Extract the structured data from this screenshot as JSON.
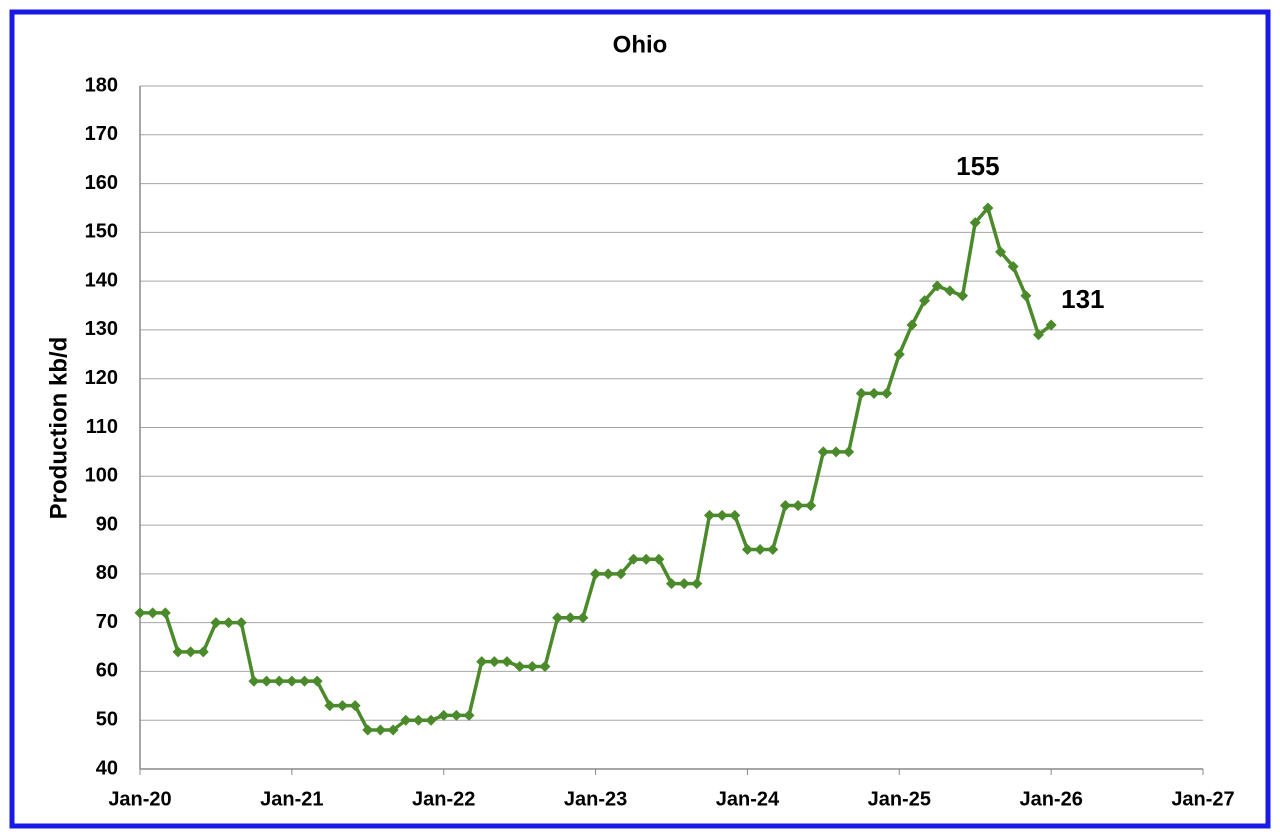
{
  "chart_data": {
    "type": "line",
    "title": "Ohio",
    "y_label": "Production kb/d",
    "x": [
      "2020-01",
      "2020-02",
      "2020-03",
      "2020-04",
      "2020-05",
      "2020-06",
      "2020-07",
      "2020-08",
      "2020-09",
      "2020-10",
      "2020-11",
      "2020-12",
      "2021-01",
      "2021-02",
      "2021-03",
      "2021-04",
      "2021-05",
      "2021-06",
      "2021-07",
      "2021-08",
      "2021-09",
      "2021-10",
      "2021-11",
      "2021-12",
      "2022-01",
      "2022-02",
      "2022-03",
      "2022-04",
      "2022-05",
      "2022-06",
      "2022-07",
      "2022-08",
      "2022-09",
      "2022-10",
      "2022-11",
      "2022-12",
      "2023-01",
      "2023-02",
      "2023-03",
      "2023-04",
      "2023-05",
      "2023-06",
      "2023-07",
      "2023-08",
      "2023-09",
      "2023-10",
      "2023-11",
      "2023-12",
      "2024-01",
      "2024-02",
      "2024-03",
      "2024-04",
      "2024-05",
      "2024-06",
      "2024-07",
      "2024-08",
      "2024-09",
      "2024-10",
      "2024-11",
      "2024-12",
      "2025-01",
      "2025-02",
      "2025-03",
      "2025-04",
      "2025-05",
      "2025-06",
      "2025-07",
      "2025-08",
      "2025-09",
      "2025-10",
      "2025-11",
      "2025-12",
      "2026-01"
    ],
    "series": [
      {
        "name": "Ohio",
        "color": "#4a8a2a",
        "values": [
          72,
          72,
          72,
          64,
          64,
          64,
          70,
          70,
          70,
          58,
          58,
          58,
          58,
          58,
          58,
          53,
          53,
          53,
          48,
          48,
          48,
          50,
          50,
          50,
          51,
          51,
          51,
          62,
          62,
          62,
          61,
          61,
          61,
          71,
          71,
          71,
          80,
          80,
          80,
          83,
          83,
          83,
          78,
          78,
          78,
          92,
          92,
          92,
          85,
          85,
          85,
          94,
          94,
          94,
          105,
          105,
          105,
          117,
          117,
          117,
          125,
          131,
          136,
          139,
          138,
          137,
          152,
          155,
          146,
          143,
          137,
          129,
          131
        ]
      }
    ],
    "annotations": [
      {
        "x": "2025-08",
        "value": 155
      },
      {
        "x": "2026-01",
        "value": 131
      }
    ],
    "xlim": [
      "2020-01",
      "2027-01"
    ],
    "xticks": [
      {
        "value": "2020-01",
        "label": "Jan-20"
      },
      {
        "value": "2021-01",
        "label": "Jan-21"
      },
      {
        "value": "2022-01",
        "label": "Jan-22"
      },
      {
        "value": "2023-01",
        "label": "Jan-23"
      },
      {
        "value": "2024-01",
        "label": "Jan-24"
      },
      {
        "value": "2025-01",
        "label": "Jan-25"
      },
      {
        "value": "2026-01",
        "label": "Jan-26"
      },
      {
        "value": "2027-01",
        "label": "Jan-27"
      }
    ],
    "ylim": [
      40,
      180
    ],
    "yticks": [
      40,
      50,
      60,
      70,
      80,
      90,
      100,
      110,
      120,
      130,
      140,
      150,
      160,
      170,
      180
    ],
    "grid": true
  }
}
